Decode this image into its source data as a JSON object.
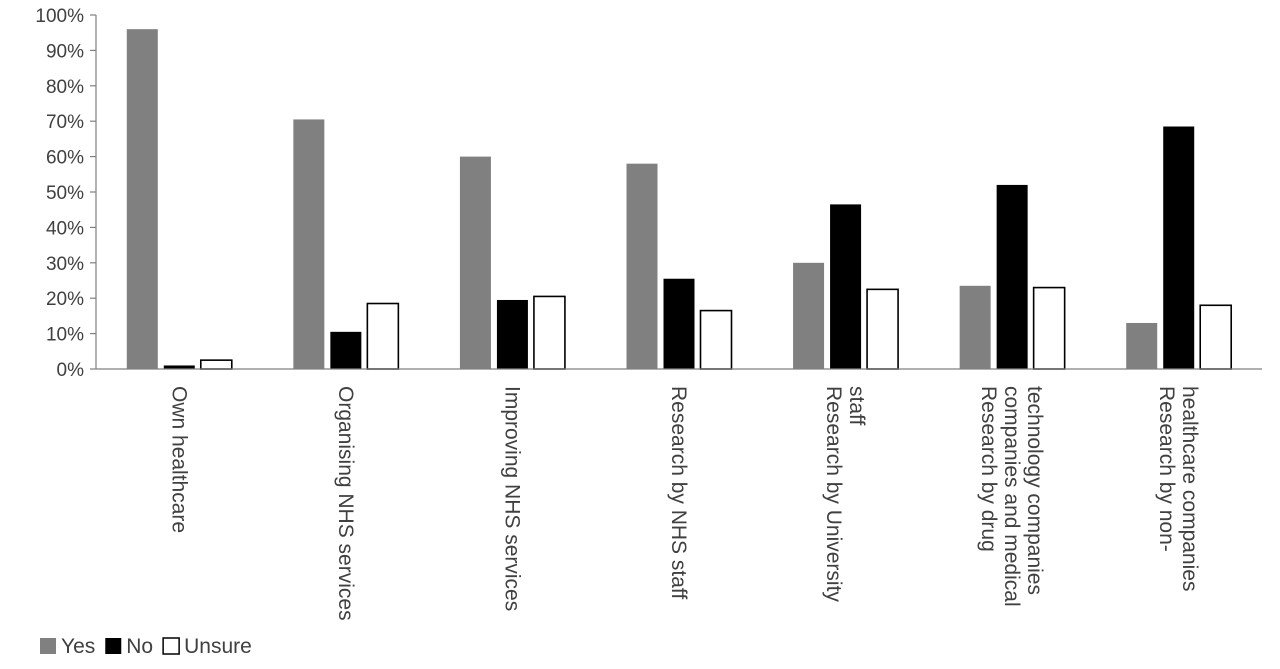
{
  "chart_data": {
    "type": "bar",
    "title": "",
    "xlabel": "",
    "ylabel": "",
    "ylim": [
      0,
      100
    ],
    "y_tick_labels": [
      "0%",
      "10%",
      "20%",
      "30%",
      "40%",
      "50%",
      "60%",
      "70%",
      "80%",
      "90%",
      "100%"
    ],
    "grid": false,
    "legend_position": "bottom-left",
    "categories": [
      [
        "Own healthcare"
      ],
      [
        "Organising NHS services"
      ],
      [
        "Improving NHS services"
      ],
      [
        "Research by NHS staff"
      ],
      [
        "Research by University",
        "staff"
      ],
      [
        "Research by drug",
        "companies and medical",
        "technology companies"
      ],
      [
        "Research by non-",
        "healthcare companies"
      ]
    ],
    "series": [
      {
        "name": "Yes",
        "color": "#808080",
        "values": [
          96,
          70.5,
          60,
          58,
          30,
          23.5,
          13
        ]
      },
      {
        "name": "No",
        "color": "#000000",
        "values": [
          1,
          10.5,
          19.5,
          25.5,
          46.5,
          52,
          68.5
        ]
      },
      {
        "name": "Unsure",
        "color": "#ffffff",
        "values": [
          2.5,
          18.5,
          20.5,
          16.5,
          22.5,
          23,
          18
        ]
      }
    ]
  }
}
